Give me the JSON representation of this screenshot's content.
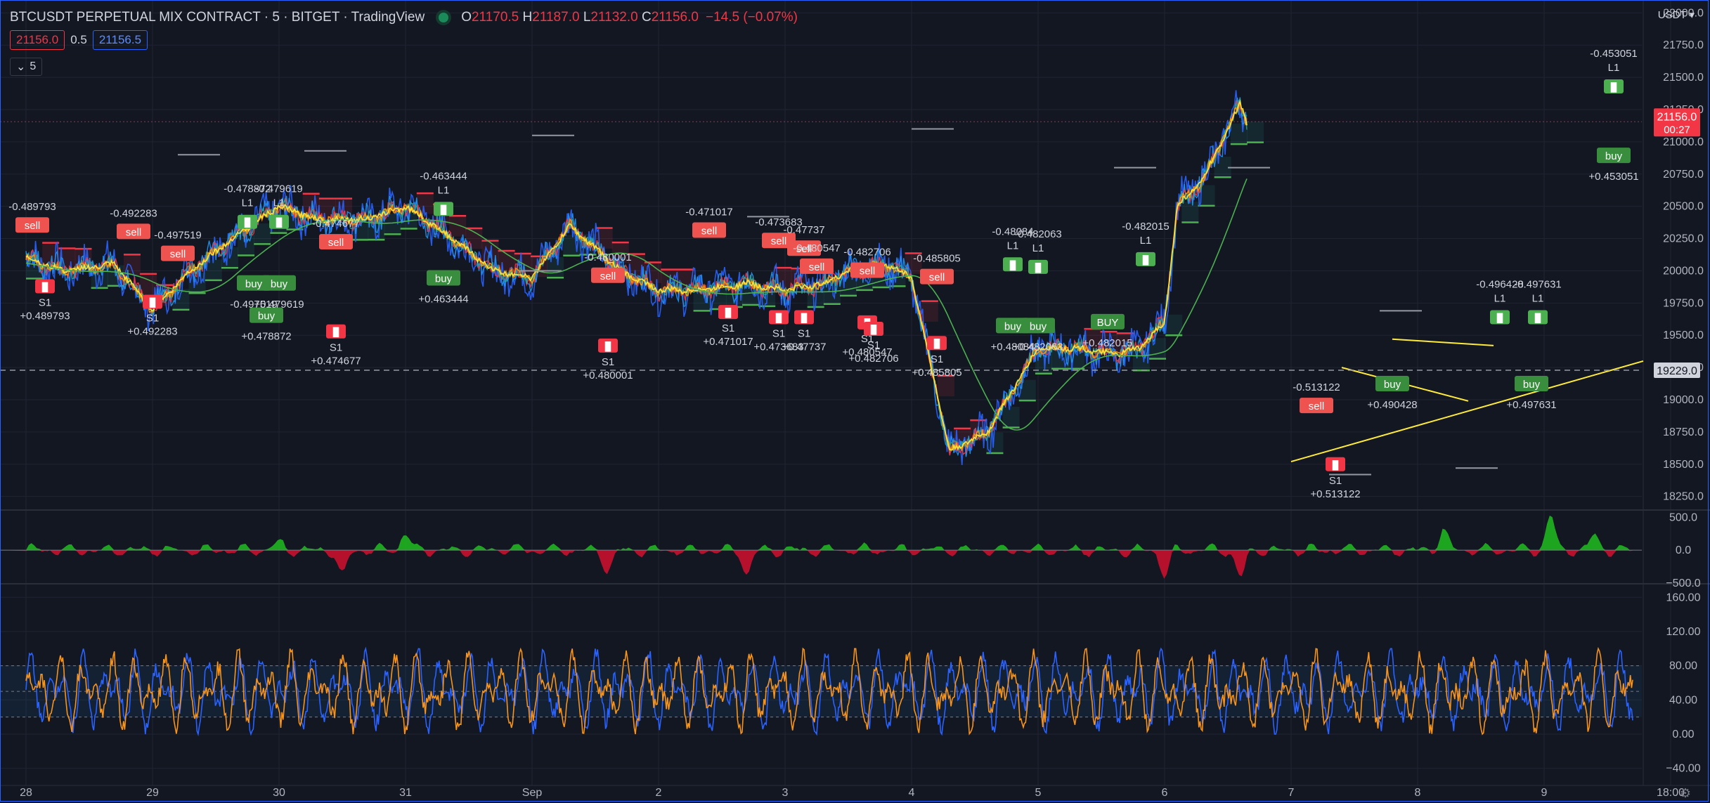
{
  "header": {
    "title": "BTCUSDT PERPETUAL MIX CONTRACT · 5 · BITGET · TradingView",
    "open_label": "O",
    "open": "21170.5",
    "high_label": "H",
    "high": "21187.0",
    "low_label": "L",
    "low": "21132.0",
    "close_label": "C",
    "close": "21156.0",
    "change": "−14.5 (−0.07%)",
    "bid": "21156.0",
    "spread": "0.5",
    "ask": "21156.5",
    "interval_collapsed": "5",
    "currency": "USDT ▾"
  },
  "colors": {
    "background": "#131722",
    "up": "#26a69a",
    "down": "#f23645",
    "accent": "#2962ff"
  },
  "chart_data": [
    {
      "type": "line",
      "title": "BTCUSDT PERPETUAL MIX CONTRACT · 5 · BITGET",
      "x_ticks": [
        "28",
        "29",
        "30",
        "31",
        "Sep",
        "2",
        "3",
        "4",
        "5",
        "6",
        "7",
        "8",
        "9",
        "18:00"
      ],
      "y_ticks": [
        22000,
        21750,
        21500,
        21250,
        21000,
        20750,
        20500,
        20250,
        20000,
        19750,
        19500,
        19250,
        19000,
        18750,
        18500,
        18250
      ],
      "ylim": [
        18150,
        22100
      ],
      "last_price": "21156.0",
      "countdown": "00:27",
      "marker_price": "19229.0",
      "price_path": {
        "x": [
          0,
          0.3,
          0.7,
          1.0,
          1.3,
          1.7,
          2.0,
          2.3,
          2.7,
          3.0,
          3.3,
          3.7,
          4.0,
          4.3,
          4.7,
          5.0,
          5.3,
          5.7,
          6.0,
          6.3,
          6.5,
          6.8,
          7.0,
          7.3,
          7.6,
          8.0,
          8.3,
          8.6,
          8.8,
          9.0,
          9.1,
          9.3,
          9.5,
          9.6,
          9.65
        ],
        "y": [
          20100,
          20000,
          20050,
          19700,
          20000,
          20300,
          20500,
          20400,
          20400,
          20500,
          20300,
          20000,
          19950,
          20350,
          20000,
          19850,
          19850,
          19900,
          19850,
          19900,
          20000,
          20050,
          19950,
          18600,
          18750,
          19400,
          19400,
          19350,
          19400,
          19600,
          20500,
          20700,
          21100,
          21300,
          21156
        ]
      },
      "signals": [
        {
          "x": 0.05,
          "y": 20350,
          "type": "sell",
          "label": "sell",
          "value": "-0.489793"
        },
        {
          "x": 0.15,
          "y": 19880,
          "type": "target",
          "label": "S1",
          "value": "+0.489793"
        },
        {
          "x": 0.85,
          "y": 20300,
          "type": "sell",
          "label": "sell",
          "value": "-0.492283"
        },
        {
          "x": 1.0,
          "y": 19760,
          "type": "target",
          "label": "S1",
          "value": "+0.492283"
        },
        {
          "x": 1.2,
          "y": 20130,
          "type": "sell",
          "label": "sell",
          "value": "-0.497519"
        },
        {
          "x": 1.75,
          "y": 20380,
          "type": "target",
          "label": "L1",
          "value": "-0.478872"
        },
        {
          "x": 1.9,
          "y": 19650,
          "type": "buy",
          "label": "buy",
          "value": "+0.478872"
        },
        {
          "x": 1.8,
          "y": 19900,
          "type": "buy",
          "label": "buy",
          "value": "-0.497519"
        },
        {
          "x": 2.0,
          "y": 20380,
          "type": "target",
          "label": "L1",
          "value": "-0.479619"
        },
        {
          "x": 2.0,
          "y": 19900,
          "type": "buy",
          "label": "buy",
          "value": "+0.479619"
        },
        {
          "x": 2.45,
          "y": 20220,
          "type": "sell",
          "label": "sell",
          "value": "-0.474677"
        },
        {
          "x": 2.45,
          "y": 19530,
          "type": "target",
          "label": "S1",
          "value": "+0.474677"
        },
        {
          "x": 3.3,
          "y": 20480,
          "type": "target",
          "label": "L1",
          "value": "-0.463444"
        },
        {
          "x": 3.3,
          "y": 19940,
          "type": "buy",
          "label": "buy",
          "value": "+0.463444"
        },
        {
          "x": 4.6,
          "y": 19960,
          "type": "sell",
          "label": "sell",
          "value": "-0.480001"
        },
        {
          "x": 4.6,
          "y": 19420,
          "type": "target",
          "label": "S1",
          "value": "+0.480001"
        },
        {
          "x": 5.4,
          "y": 20310,
          "type": "sell",
          "label": "sell",
          "value": "-0.471017"
        },
        {
          "x": 5.55,
          "y": 19680,
          "type": "target",
          "label": "S1",
          "value": "+0.471017"
        },
        {
          "x": 5.95,
          "y": 20230,
          "type": "sell",
          "label": "sell",
          "value": "-0.473683"
        },
        {
          "x": 5.95,
          "y": 19640,
          "type": "target",
          "label": "S1",
          "value": "+0.473683"
        },
        {
          "x": 6.15,
          "y": 20170,
          "type": "sell",
          "label": "sell",
          "value": "-0.47737"
        },
        {
          "x": 6.15,
          "y": 19640,
          "type": "target",
          "label": "S1",
          "value": "+0.47737"
        },
        {
          "x": 6.25,
          "y": 20030,
          "type": "sell",
          "label": "sell",
          "value": "-0.480547"
        },
        {
          "x": 6.65,
          "y": 19600,
          "type": "target",
          "label": "S1",
          "value": "+0.480547"
        },
        {
          "x": 6.65,
          "y": 20000,
          "type": "sell",
          "label": "sell",
          "value": "-0.482706"
        },
        {
          "x": 6.7,
          "y": 19550,
          "type": "target",
          "label": "S1",
          "value": "+0.482706"
        },
        {
          "x": 7.2,
          "y": 19950,
          "type": "sell",
          "label": "sell",
          "value": "-0.485805"
        },
        {
          "x": 7.2,
          "y": 19440,
          "type": "target",
          "label": "S1",
          "value": "+0.485805"
        },
        {
          "x": 7.8,
          "y": 20050,
          "type": "target",
          "label": "L1",
          "value": "-0.48084"
        },
        {
          "x": 7.8,
          "y": 19570,
          "type": "buy",
          "label": "buy",
          "value": "+0.48084"
        },
        {
          "x": 8.0,
          "y": 20030,
          "type": "target",
          "label": "L1",
          "value": "-0.482063"
        },
        {
          "x": 8.0,
          "y": 19570,
          "type": "buy",
          "label": "buy",
          "value": "+0.482063"
        },
        {
          "x": 8.85,
          "y": 20090,
          "type": "target",
          "label": "L1",
          "value": "-0.482015"
        },
        {
          "x": 8.55,
          "y": 19600,
          "type": "buy",
          "label": "BUY",
          "value": "+0.482015"
        },
        {
          "x": 10.2,
          "y": 18950,
          "type": "sell",
          "label": "sell",
          "value": "-0.513122"
        },
        {
          "x": 10.35,
          "y": 18500,
          "type": "target",
          "label": "S1",
          "value": "+0.513122"
        },
        {
          "x": 10.8,
          "y": 19120,
          "type": "buy",
          "label": "buy",
          "value": "+0.490428"
        },
        {
          "x": 11.65,
          "y": 19640,
          "type": "target",
          "label": "L1",
          "value": "-0.496428"
        },
        {
          "x": 11.95,
          "y": 19640,
          "type": "target",
          "label": "L1",
          "value": "-0.497631"
        },
        {
          "x": 11.9,
          "y": 19120,
          "type": "buy",
          "label": "buy",
          "value": "+0.497631"
        },
        {
          "x": 12.55,
          "y": 21430,
          "type": "target",
          "label": "L1",
          "value": "-0.453051"
        },
        {
          "x": 12.55,
          "y": 20890,
          "type": "buy",
          "label": "buy",
          "value": "+0.453051"
        }
      ]
    },
    {
      "type": "area",
      "title": "",
      "y_ticks": [
        500.0,
        0.0,
        -500.0
      ],
      "y_tick_labels": [
        "500.0",
        "0.0",
        "−500.0"
      ],
      "ylim": [
        -500,
        600
      ],
      "peaks": [
        {
          "x": 2.0,
          "value": 120
        },
        {
          "x": 2.5,
          "value": -400
        },
        {
          "x": 3.0,
          "value": 260
        },
        {
          "x": 4.6,
          "value": -300
        },
        {
          "x": 5.7,
          "value": -350
        },
        {
          "x": 9.0,
          "value": -380
        },
        {
          "x": 9.6,
          "value": -430
        },
        {
          "x": 11.2,
          "value": 300
        },
        {
          "x": 12.05,
          "value": 520
        },
        {
          "x": 12.4,
          "value": 230
        }
      ]
    },
    {
      "type": "line",
      "title": "",
      "y_ticks": [
        160.0,
        120.0,
        80.0,
        40.0,
        0.0,
        -40.0
      ],
      "y_tick_labels": [
        "160.00",
        "120.00",
        "80.00",
        "40.00",
        "0.00",
        "−40.00"
      ],
      "ylim": [
        -60,
        175
      ],
      "bands": [
        80,
        50,
        20
      ],
      "series": [
        {
          "min": 0,
          "max": 100
        },
        {
          "min": 0,
          "max": 100
        }
      ]
    }
  ]
}
